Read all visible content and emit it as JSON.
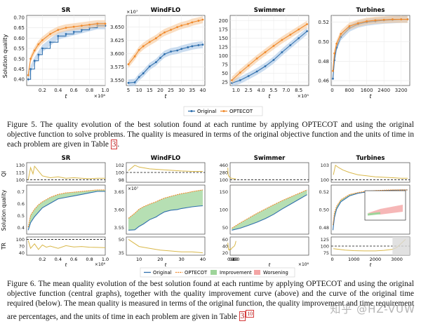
{
  "figure5": {
    "caption_label": "Figure 5.",
    "caption_text": "The quality evolution of the best solution found at each runtime by applying OPTECOT and using the original objective function to solve problems. The quality is measured in terms of the original objective function and the units of time in each problem are given in Table",
    "caption_ref": "3",
    "caption_end": ".",
    "ylabel": "Solution quality",
    "legend": [
      "Original",
      "OPTECOT"
    ],
    "colors": {
      "original": "#2f6fad",
      "optecot": "#f08a2c",
      "original_band": "#a9c6e6",
      "optecot_band": "#f7c89a"
    }
  },
  "figure6": {
    "caption_label": "Figure 6.",
    "caption_text": "The mean quality evolution of the best solution found at each runtime by applying OPTECOT and using the original objective function (central graphs), together with the quality improvement curve (above) and the curve of the original time required (below). The mean quality is measured in terms of the original function, the quality improvement and time requirement are percentages, and the units of time in each problem are given in Table",
    "caption_ref": "3",
    "caption_sup": "10",
    "ylabels": {
      "top": "QI",
      "mid": "Solution quality",
      "bot": "TR"
    },
    "legend": [
      "Original",
      "OPTECOT",
      "Improvement",
      "Worsening"
    ],
    "colors": {
      "original": "#2f6fad",
      "optecot": "#f08a2c",
      "improvement": "#9ed49a",
      "worsening": "#f4a5a5",
      "qi": "#d9b84a"
    }
  },
  "watermark": "知乎 @HZ-VUW",
  "chart_data": [
    {
      "type": "line",
      "title": "SR",
      "xlabel": "t",
      "x_exponent": "×10⁶",
      "x_ticks": [
        "0.2",
        "0.4",
        "0.6",
        "0.8",
        "1.0"
      ],
      "y_ticks": [
        "0.40",
        "0.45",
        "0.50",
        "0.55",
        "0.60",
        "0.65",
        "0.70"
      ],
      "series": [
        {
          "name": "Original",
          "x": [
            0.02,
            0.05,
            0.1,
            0.15,
            0.2,
            0.3,
            0.4,
            0.5,
            0.6,
            0.7,
            0.8,
            0.9,
            1.0
          ],
          "y": [
            0.4,
            0.45,
            0.49,
            0.52,
            0.55,
            0.58,
            0.61,
            0.62,
            0.63,
            0.64,
            0.65,
            0.66,
            0.66
          ]
        },
        {
          "name": "OPTECOT",
          "x": [
            0.02,
            0.05,
            0.1,
            0.15,
            0.2,
            0.3,
            0.4,
            0.5,
            0.6,
            0.7,
            0.8,
            0.9,
            1.0
          ],
          "y": [
            0.42,
            0.5,
            0.54,
            0.57,
            0.59,
            0.62,
            0.64,
            0.65,
            0.655,
            0.66,
            0.665,
            0.67,
            0.67
          ]
        }
      ],
      "xlim": [
        0,
        1.0
      ],
      "ylim": [
        0.37,
        0.71
      ]
    },
    {
      "type": "line",
      "title": "WindFLO",
      "xlabel": "t",
      "y_exponent": "×10⁷",
      "x_ticks": [
        "5",
        "10",
        "15",
        "20",
        "25",
        "30",
        "35",
        "40"
      ],
      "y_ticks": [
        "3.550",
        "3.575",
        "3.600",
        "3.625",
        "3.650"
      ],
      "series": [
        {
          "name": "Original",
          "x": [
            5,
            8,
            10,
            12,
            15,
            18,
            20,
            22,
            25,
            28,
            30,
            33,
            35,
            38,
            40
          ],
          "y": [
            3.545,
            3.546,
            3.556,
            3.563,
            3.576,
            3.584,
            3.592,
            3.599,
            3.604,
            3.606,
            3.609,
            3.612,
            3.614,
            3.616,
            3.617
          ]
        },
        {
          "name": "OPTECOT",
          "x": [
            5,
            8,
            10,
            12,
            15,
            18,
            20,
            22,
            25,
            28,
            30,
            33,
            35,
            38,
            40
          ],
          "y": [
            3.58,
            3.595,
            3.607,
            3.614,
            3.622,
            3.629,
            3.635,
            3.64,
            3.645,
            3.65,
            3.653,
            3.656,
            3.659,
            3.662,
            3.664
          ]
        }
      ],
      "xlim": [
        4,
        41
      ],
      "ylim": [
        3.54,
        3.672
      ]
    },
    {
      "type": "line",
      "title": "Swimmer",
      "xlabel": "t",
      "x_exponent": "×10⁵",
      "x_ticks": [
        "1.0",
        "2.5",
        "4.0",
        "5.5",
        "7.0",
        "8.5"
      ],
      "y_ticks": [
        "25",
        "50",
        "75",
        "100",
        "125",
        "150",
        "175",
        "200"
      ],
      "series": [
        {
          "name": "Original",
          "x": [
            0.5,
            1.5,
            2.5,
            3.5,
            4.5,
            5.5,
            6.5,
            7.5,
            8.5,
            9.5
          ],
          "y": [
            22,
            30,
            42,
            55,
            70,
            88,
            110,
            130,
            150,
            170
          ]
        },
        {
          "name": "OPTECOT",
          "x": [
            0.5,
            1.5,
            2.5,
            3.5,
            4.5,
            5.5,
            6.5,
            7.5,
            8.5,
            9.5
          ],
          "y": [
            30,
            52,
            72,
            92,
            110,
            128,
            145,
            160,
            175,
            190
          ]
        }
      ],
      "xlim": [
        0.3,
        9.7
      ],
      "ylim": [
        15,
        215
      ]
    },
    {
      "type": "line",
      "title": "Turbines",
      "xlabel": "t",
      "x_ticks": [
        "0",
        "800",
        "1600",
        "2400",
        "3200"
      ],
      "y_ticks": [
        "0.46",
        "0.48",
        "0.50",
        "0.52"
      ],
      "series": [
        {
          "name": "Original",
          "x": [
            30,
            100,
            200,
            400,
            800,
            1200,
            1600,
            2000,
            2400,
            2800,
            3200,
            3500
          ],
          "y": [
            0.462,
            0.481,
            0.494,
            0.505,
            0.514,
            0.518,
            0.52,
            0.521,
            0.522,
            0.5225,
            0.523,
            0.523
          ]
        },
        {
          "name": "OPTECOT",
          "x": [
            30,
            100,
            200,
            400,
            800,
            1200,
            1600,
            2000,
            2400,
            2800,
            3200,
            3500
          ],
          "y": [
            0.47,
            0.488,
            0.498,
            0.508,
            0.516,
            0.519,
            0.521,
            0.522,
            0.5225,
            0.523,
            0.523,
            0.523
          ]
        }
      ],
      "xlim": [
        -50,
        3600
      ],
      "ylim": [
        0.455,
        0.527
      ]
    },
    {
      "type": "line",
      "title": "SR",
      "panel": "figure6",
      "x_exponent": "×10⁶",
      "top_y_ticks": [
        "100",
        "115",
        "130"
      ],
      "mid_y_ticks": [
        "0.4",
        "0.5",
        "0.6",
        "0.7"
      ],
      "bot_y_ticks": [
        "40",
        "70",
        "100"
      ],
      "x_ticks": [
        "0.2",
        "0.4",
        "0.6",
        "0.8",
        "1.0"
      ],
      "qi": {
        "x": [
          0.02,
          0.05,
          0.08,
          0.1,
          0.15,
          0.2,
          0.3,
          0.4,
          0.5,
          0.6,
          0.7,
          0.8,
          0.9,
          1.0
        ],
        "y": [
          100,
          125,
          112,
          128,
          118,
          108,
          104,
          106,
          103,
          104,
          103,
          102,
          103,
          103
        ]
      },
      "tr": {
        "x": [
          0.02,
          0.05,
          0.1,
          0.15,
          0.2,
          0.25,
          0.3,
          0.4,
          0.5,
          0.6,
          0.7,
          0.8,
          0.9,
          1.0
        ],
        "y": [
          95,
          60,
          80,
          55,
          75,
          65,
          70,
          60,
          72,
          66,
          68,
          65,
          64,
          63
        ]
      }
    },
    {
      "type": "line",
      "title": "WindFLO",
      "panel": "figure6",
      "y_exponent": "×10⁷",
      "top_y_ticks": [
        "98",
        "100",
        "102"
      ],
      "mid_y_ticks": [
        "3.55",
        "3.60",
        "3.65"
      ],
      "bot_y_ticks": [
        "35",
        "50"
      ],
      "x_ticks": [
        "10",
        "20",
        "30",
        "40"
      ],
      "qi": {
        "x": [
          5,
          8,
          10,
          15,
          20,
          25,
          30,
          35,
          40
        ],
        "y": [
          100.5,
          102,
          101.5,
          101,
          100.8,
          100.6,
          100.4,
          100.3,
          100.3
        ]
      },
      "tr": {
        "x": [
          5,
          10,
          15,
          20,
          25,
          30,
          35,
          40
        ],
        "y": [
          50,
          42,
          40,
          38,
          37,
          36,
          36,
          35
        ]
      }
    },
    {
      "type": "line",
      "title": "Swimmer",
      "panel": "figure6",
      "x_exponent": "×10⁶",
      "top_y_ticks": [
        "100",
        "280",
        "460"
      ],
      "mid_y_ticks": [
        "50",
        "100",
        "150"
      ],
      "bot_y_ticks": [
        "20",
        "40",
        "60"
      ],
      "x_ticks": [
        "0.2",
        "0.4",
        "0.6",
        "0.8",
        "1.0"
      ],
      "qi": {
        "x": [
          0.02,
          0.05,
          0.1,
          0.2,
          0.3,
          0.4,
          0.5,
          0.6,
          0.7,
          0.8,
          0.9,
          1.0
        ],
        "y": [
          400,
          250,
          200,
          170,
          150,
          140,
          135,
          130,
          128,
          125,
          123,
          120
        ]
      },
      "tr": {
        "x": [
          0.02,
          0.1,
          0.2,
          0.3,
          0.4,
          0.5,
          0.6,
          0.7,
          0.8,
          0.9,
          1.0
        ],
        "y": [
          50,
          30,
          28,
          32,
          30,
          34,
          36,
          38,
          40,
          45,
          55
        ]
      }
    },
    {
      "type": "line",
      "title": "Turbines",
      "panel": "figure6",
      "top_y_ticks": [
        "100",
        "103"
      ],
      "mid_y_ticks": [
        "0.48",
        "0.50",
        "0.52"
      ],
      "bot_y_ticks": [
        "75",
        "100",
        "125"
      ],
      "x_ticks": [
        "0",
        "1000",
        "2000",
        "3000"
      ],
      "qi": {
        "x": [
          50,
          150,
          300,
          500,
          800,
          1200,
          1600,
          2000,
          2400,
          2800,
          3200,
          3500
        ],
        "y": [
          101,
          103,
          102.5,
          102,
          101.5,
          101,
          100.8,
          100.6,
          100.5,
          100.4,
          100.3,
          100.3
        ]
      },
      "tr": {
        "x": [
          50,
          300,
          600,
          1000,
          1500,
          2000,
          2400,
          2800,
          3000,
          3200,
          3400
        ],
        "y": [
          90,
          88,
          85,
          83,
          82,
          82,
          84,
          88,
          95,
          110,
          125
        ]
      }
    }
  ]
}
